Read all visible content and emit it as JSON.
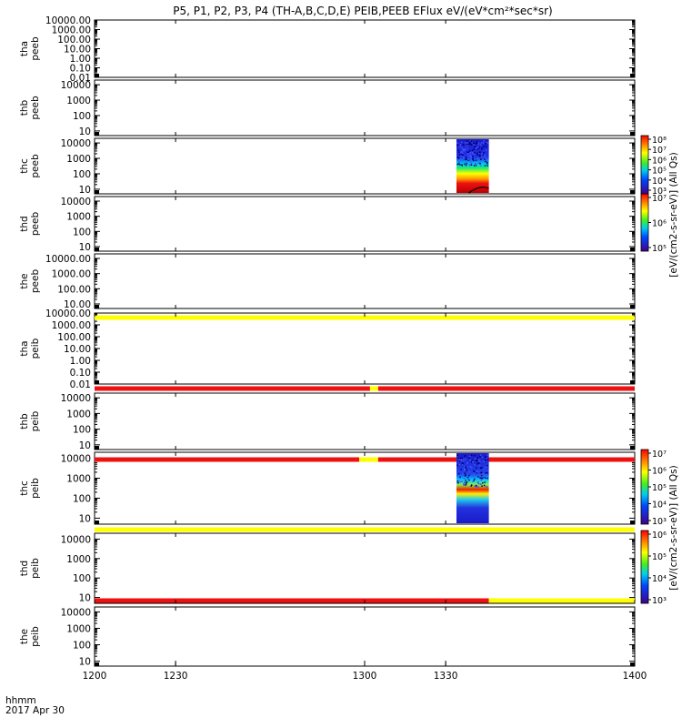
{
  "title": "P5, P1, P2, P3, P4 (TH-A,B,C,D,E) PEIB,PEEB EFlux eV/(eV*cm²*sec*sr)",
  "colors": {
    "axis": "#000000",
    "red": "#ee1111",
    "yellow": "#ffff00"
  },
  "chart_data": {
    "type": "heatmap",
    "x_label": "hhmm",
    "date_label": "2017 Apr 30",
    "x_ticks": [
      "1200",
      "1230",
      "1300",
      "1330",
      "1400"
    ],
    "x_range": [
      1200,
      1400
    ],
    "panels": [
      {
        "label": [
          "tha",
          "peeb"
        ],
        "y_ticks": [
          "10000.00",
          "1000.00",
          "100.00",
          "10.00",
          "1.00",
          "0.10",
          "0.01"
        ],
        "y_log_range": [
          -2,
          4
        ]
      },
      {
        "label": [
          "thb",
          "peeb"
        ],
        "y_ticks": [
          "10000",
          "1000",
          "100",
          "10"
        ],
        "y_log_range": [
          0.7,
          4.3
        ]
      },
      {
        "label": [
          "thc",
          "peeb"
        ],
        "y_ticks": [
          "10000",
          "1000",
          "100",
          "10"
        ],
        "y_log_range": [
          0.7,
          4.3
        ],
        "spectrogram": {
          "x_start": 1334,
          "x_end": 1346,
          "profile": "electron"
        },
        "colorbar": {
          "ticks": [
            "10⁸",
            "10⁷",
            "10⁶",
            "10⁵",
            "10⁴",
            "10³"
          ],
          "label": "[eV/(cm2-s-sr-eV)] (All Qs)"
        }
      },
      {
        "label": [
          "thd",
          "peeb"
        ],
        "y_ticks": [
          "10000",
          "1000",
          "100",
          "10"
        ],
        "y_log_range": [
          0.7,
          4.3
        ],
        "colorbar": {
          "ticks": [
            "10⁷",
            "10⁶",
            "10⁵"
          ],
          "label": "[eV/(cm2-s-sr-eV)] (All Qs)"
        }
      },
      {
        "label": [
          "the",
          "peeb"
        ],
        "y_ticks": [
          "10000.00",
          "1000.00",
          "100.00",
          "10.00"
        ],
        "y_log_range": [
          0.7,
          4.3
        ]
      },
      {
        "label": [
          "tha",
          "peib"
        ],
        "y_ticks": [
          "10000.00",
          "1000.00",
          "100.00",
          "10.00",
          "1.00",
          "0.10",
          "0.01"
        ],
        "y_log_range": [
          -2,
          4
        ]
      },
      {
        "label": [
          "thb",
          "peib"
        ],
        "y_ticks": [
          "10000",
          "1000",
          "100",
          "10"
        ],
        "y_log_range": [
          0.7,
          4.3
        ]
      },
      {
        "label": [
          "thc",
          "peib"
        ],
        "y_ticks": [
          "10000",
          "1000",
          "100",
          "10"
        ],
        "y_log_range": [
          0.7,
          4.3
        ],
        "spectrogram": {
          "x_start": 1334,
          "x_end": 1346,
          "profile": "ion"
        },
        "colorbar": {
          "ticks": [
            "10⁷",
            "10⁶",
            "10⁵",
            "10⁴",
            "10³"
          ],
          "label": "[eV/(cm2-s-sr-eV)] (All Qs)"
        }
      },
      {
        "label": [
          "thd",
          "peib"
        ],
        "y_ticks": [
          "10000",
          "1000",
          "100",
          "10"
        ],
        "y_log_range": [
          0.7,
          4.3
        ],
        "colorbar": {
          "ticks": [
            "10⁶",
            "10⁵",
            "10⁴",
            "10³"
          ],
          "label": "[eV/(cm2-s-sr-eV)] (All Qs)"
        }
      },
      {
        "label": [
          "the",
          "peib"
        ],
        "y_ticks": [
          "10000",
          "1000",
          "100",
          "10"
        ],
        "y_log_range": [
          0.7,
          4.3
        ]
      }
    ],
    "status_bars": [
      {
        "segments": [
          {
            "x_start": 1200,
            "x_end": 1400,
            "color": "yellow"
          }
        ]
      },
      {
        "segments": [
          {
            "x_start": 1200,
            "x_end": 1302,
            "color": "red"
          },
          {
            "x_start": 1302,
            "x_end": 1305,
            "color": "yellow"
          },
          {
            "x_start": 1305,
            "x_end": 1400,
            "color": "red"
          }
        ]
      },
      {
        "segments": [
          {
            "x_start": 1200,
            "x_end": 1298,
            "color": "red"
          },
          {
            "x_start": 1298,
            "x_end": 1305,
            "color": "yellow"
          },
          {
            "x_start": 1305,
            "x_end": 1400,
            "color": "red"
          }
        ]
      },
      {
        "segments": [
          {
            "x_start": 1200,
            "x_end": 1400,
            "color": "yellow"
          }
        ]
      },
      {
        "segments": [
          {
            "x_start": 1200,
            "x_end": 1346,
            "color": "red"
          },
          {
            "x_start": 1346,
            "x_end": 1400,
            "color": "yellow"
          }
        ]
      }
    ]
  }
}
